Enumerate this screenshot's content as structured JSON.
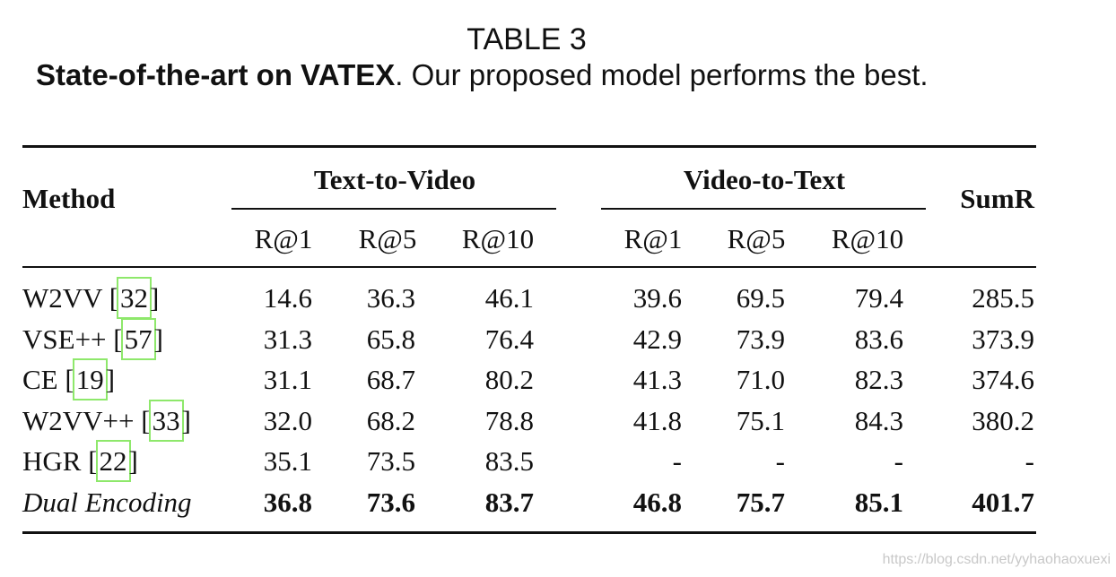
{
  "caption": {
    "label": "TABLE 3",
    "bold": "State-of-the-art on VATEX",
    "text": ". Our proposed model performs the best."
  },
  "table": {
    "header": {
      "method": "Method",
      "groups": [
        "Text-to-Video",
        "Video-to-Text"
      ],
      "sumr": "SumR",
      "metrics": [
        "R@1",
        "R@5",
        "R@10",
        "R@1",
        "R@5",
        "R@10"
      ]
    },
    "rows": [
      {
        "method": {
          "name": "W2VV [",
          "ref": "32",
          "close": "]"
        },
        "cells": [
          "14.6",
          "36.3",
          "46.1",
          "39.6",
          "69.5",
          "79.4",
          "285.5"
        ]
      },
      {
        "method": {
          "name": "VSE++ [",
          "ref": "57",
          "close": "]"
        },
        "cells": [
          "31.3",
          "65.8",
          "76.4",
          "42.9",
          "73.9",
          "83.6",
          "373.9"
        ]
      },
      {
        "method": {
          "name": "CE [",
          "ref": "19",
          "close": "]"
        },
        "cells": [
          "31.1",
          "68.7",
          "80.2",
          "41.3",
          "71.0",
          "82.3",
          "374.6"
        ]
      },
      {
        "method": {
          "name": "W2VV++ [",
          "ref": "33",
          "close": "]"
        },
        "cells": [
          "32.0",
          "68.2",
          "78.8",
          "41.8",
          "75.1",
          "84.3",
          "380.2"
        ]
      },
      {
        "method": {
          "name": "HGR [",
          "ref": "22",
          "close": "]"
        },
        "cells": [
          "35.1",
          "73.5",
          "83.5",
          "-",
          "-",
          "-",
          "-"
        ]
      },
      {
        "method": {
          "name": "Dual Encoding"
        },
        "cells": [
          "36.8",
          "73.6",
          "83.7",
          "46.8",
          "75.7",
          "85.1",
          "401.7"
        ]
      }
    ]
  },
  "watermark": "https://blog.csdn.net/yyhaohaoxuexi"
}
